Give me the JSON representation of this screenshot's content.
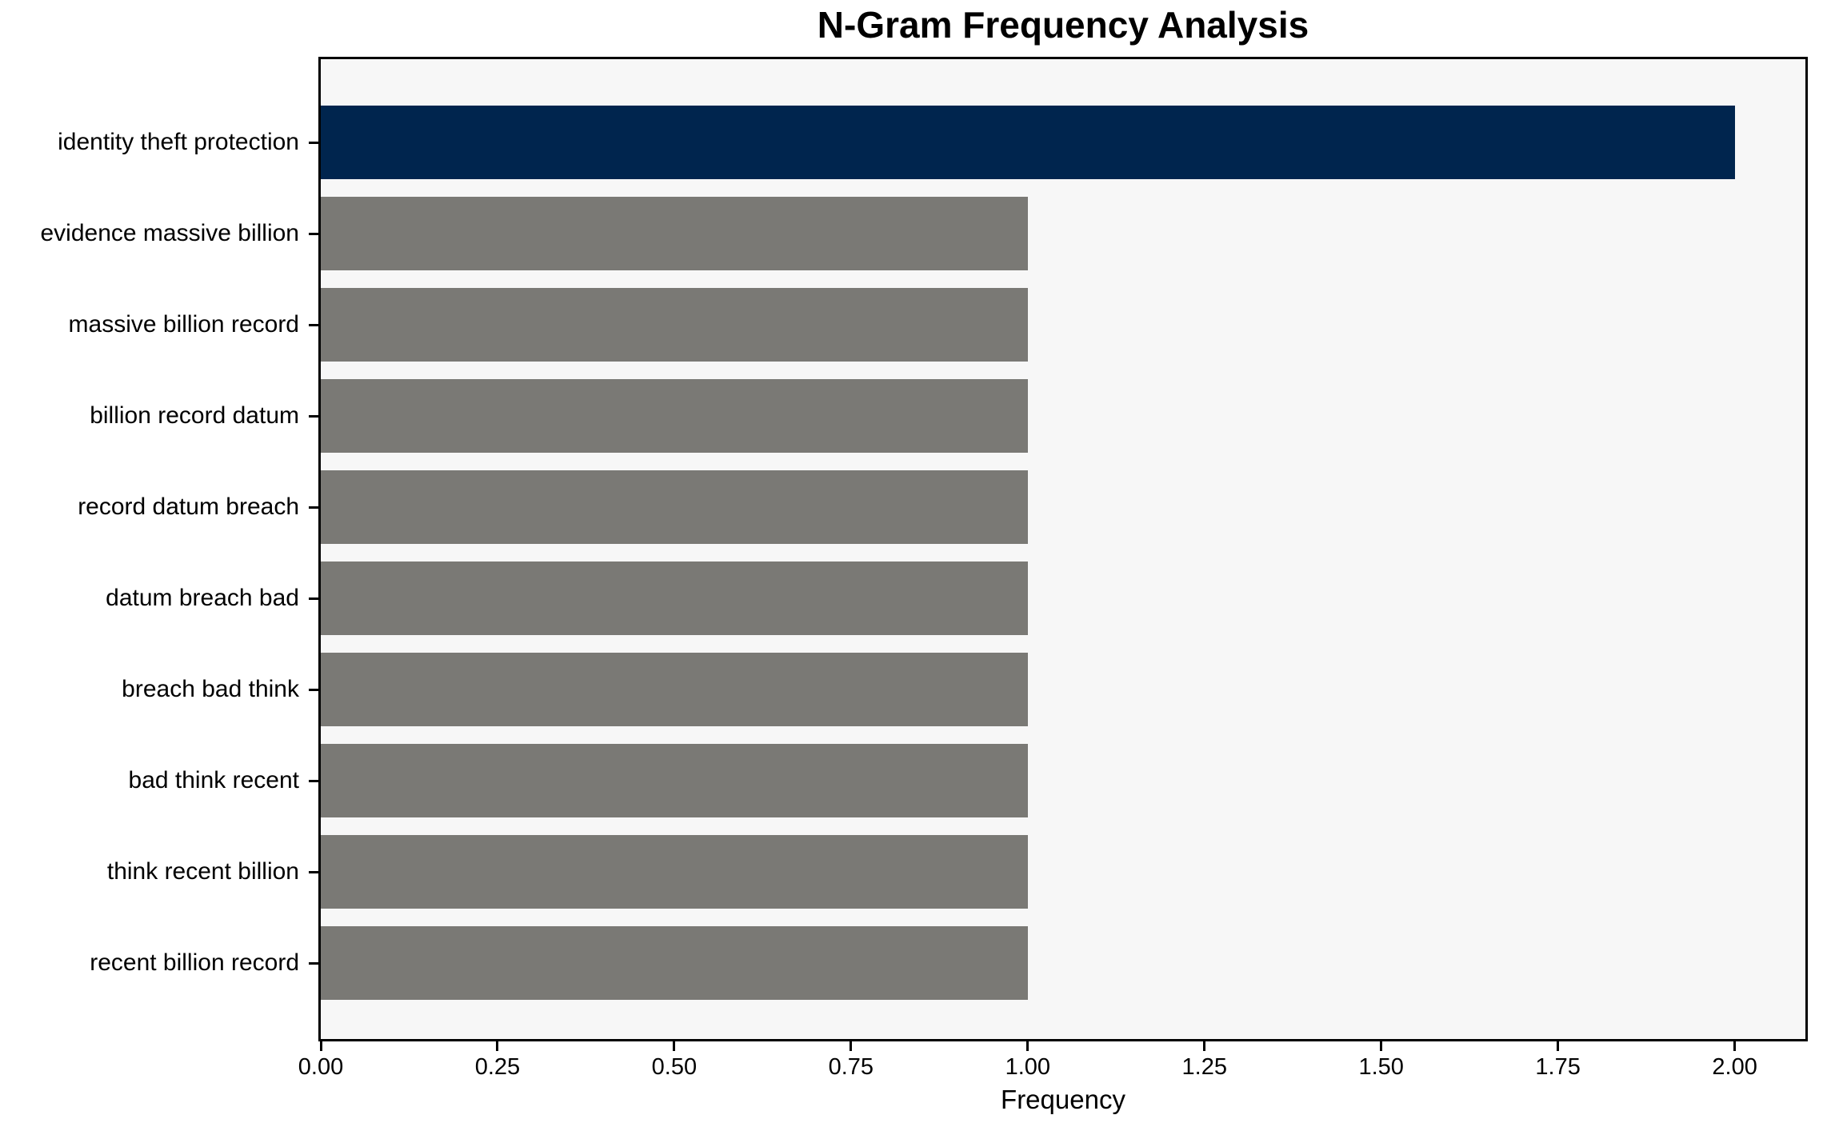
{
  "chart_data": {
    "type": "bar",
    "orientation": "horizontal",
    "title": "N-Gram Frequency Analysis",
    "xlabel": "Frequency",
    "ylabel": "",
    "categories": [
      "identity theft protection",
      "evidence massive billion",
      "massive billion record",
      "billion record datum",
      "record datum breach",
      "datum breach bad",
      "breach bad think",
      "bad think recent",
      "think recent billion",
      "recent billion record"
    ],
    "values": [
      2.0,
      1.0,
      1.0,
      1.0,
      1.0,
      1.0,
      1.0,
      1.0,
      1.0,
      1.0
    ],
    "bar_colors": [
      "#00254e",
      "#7a7975",
      "#7a7975",
      "#7a7975",
      "#7a7975",
      "#7a7975",
      "#7a7975",
      "#7a7975",
      "#7a7975",
      "#7a7975"
    ],
    "xlim": [
      0,
      2.1
    ],
    "xticks": [
      0.0,
      0.25,
      0.5,
      0.75,
      1.0,
      1.25,
      1.5,
      1.75,
      2.0
    ],
    "xtick_labels": [
      "0.00",
      "0.25",
      "0.50",
      "0.75",
      "1.00",
      "1.25",
      "1.50",
      "1.75",
      "2.00"
    ],
    "grid": false,
    "legend": null,
    "colors": {
      "highlight_bar": "#00254e",
      "default_bar": "#7a7975",
      "plot_background": "#f7f7f7",
      "figure_background": "#ffffff",
      "spine": "#000000",
      "text": "#000000"
    }
  }
}
